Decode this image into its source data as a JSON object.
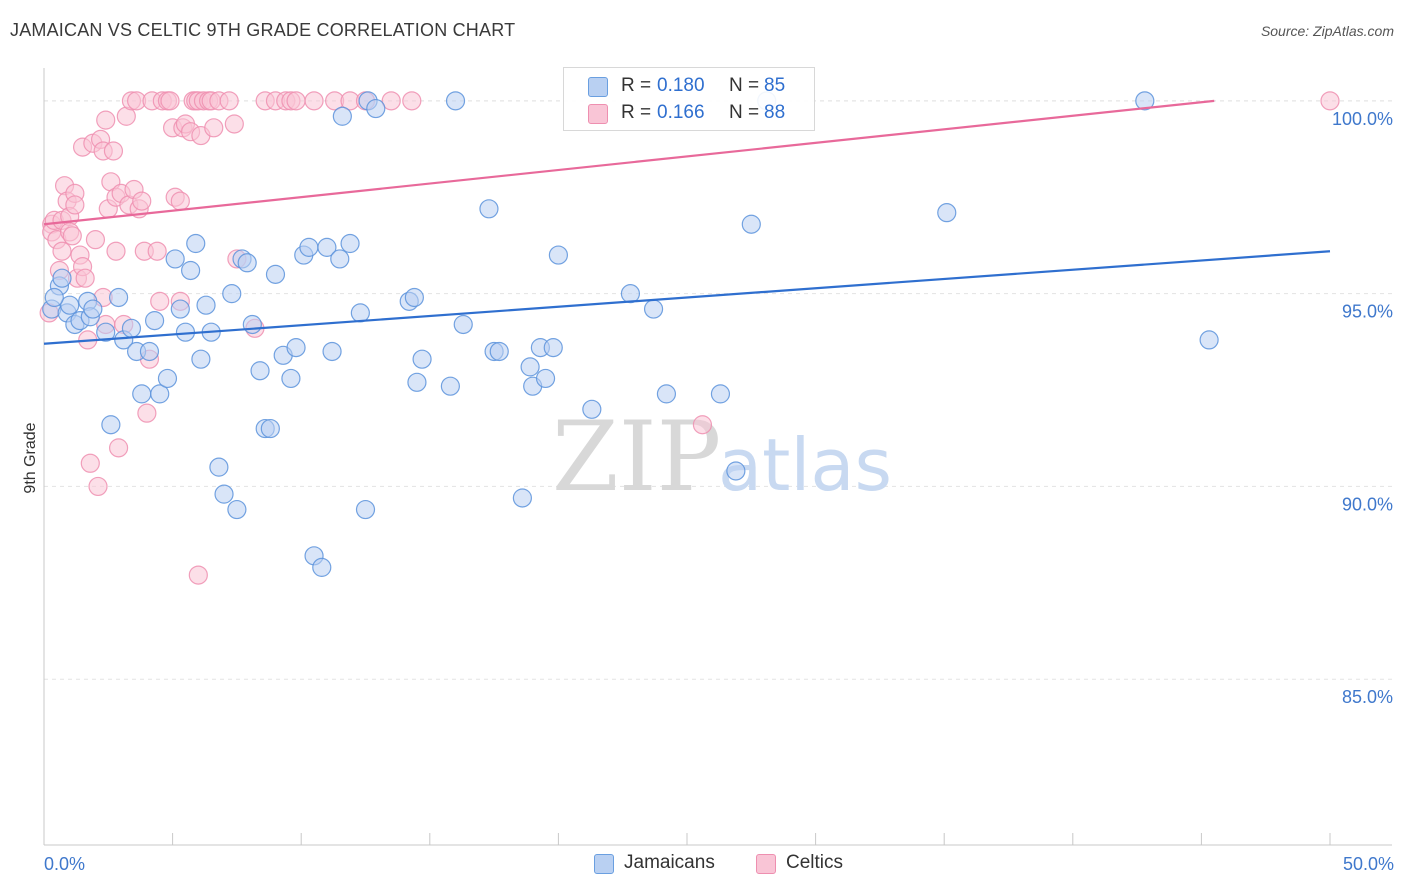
{
  "title": "JAMAICAN VS CELTIC 9TH GRADE CORRELATION CHART",
  "source": "Source: ZipAtlas.com",
  "watermark": {
    "zip": "ZIP",
    "atlas": "atlas"
  },
  "legend_top": [
    {
      "r_label": "R =",
      "r_value": "0.180",
      "n_label": "N =",
      "n_value": "85"
    },
    {
      "r_label": "R =",
      "r_value": "0.166",
      "n_label": "N =",
      "n_value": "88"
    }
  ],
  "colors": {
    "jamaicans_fill": "#b9d0f2",
    "jamaicans_stroke": "#5c93dc",
    "jamaicans_line": "#2f6fcf",
    "celtics_fill": "#f9c5d6",
    "celtics_stroke": "#ee8fb0",
    "celtics_line": "#e8699a",
    "tick_label": "#3f78cc",
    "grid": "#e3e3e3"
  },
  "chart_data": {
    "type": "scatter",
    "title": "JAMAICAN VS CELTIC 9TH GRADE CORRELATION CHART",
    "xlabel": "",
    "ylabel": "9th Grade",
    "xlim": [
      0,
      50
    ],
    "ylim": [
      80.7,
      100.8
    ],
    "x_tick_labels": [
      "0.0%",
      "50.0%"
    ],
    "y_ticks": [
      85,
      90,
      95,
      100
    ],
    "y_tick_labels": [
      "85.0%",
      "90.0%",
      "95.0%",
      "100.0%"
    ],
    "grid": true,
    "legend_position": "bottom",
    "series": [
      {
        "name": "Jamaicans",
        "r": 0.18,
        "n": 85,
        "trend": {
          "x": [
            0,
            50
          ],
          "y": [
            93.7,
            96.1
          ]
        },
        "points": [
          [
            0.3,
            94.6
          ],
          [
            0.6,
            95.2
          ],
          [
            0.7,
            95.4
          ],
          [
            0.9,
            94.5
          ],
          [
            1.0,
            94.7
          ],
          [
            1.2,
            94.2
          ],
          [
            1.4,
            94.3
          ],
          [
            1.7,
            94.8
          ],
          [
            1.8,
            94.4
          ],
          [
            1.9,
            94.6
          ],
          [
            2.4,
            94.0
          ],
          [
            2.6,
            91.6
          ],
          [
            2.9,
            94.9
          ],
          [
            3.1,
            93.8
          ],
          [
            3.4,
            94.1
          ],
          [
            3.6,
            93.5
          ],
          [
            3.8,
            92.4
          ],
          [
            4.1,
            93.5
          ],
          [
            4.3,
            94.3
          ],
          [
            4.5,
            92.4
          ],
          [
            4.8,
            92.8
          ],
          [
            5.1,
            95.9
          ],
          [
            5.3,
            94.6
          ],
          [
            5.5,
            94.0
          ],
          [
            5.7,
            95.6
          ],
          [
            5.9,
            96.3
          ],
          [
            6.1,
            93.3
          ],
          [
            6.3,
            94.7
          ],
          [
            6.5,
            94.0
          ],
          [
            6.8,
            90.5
          ],
          [
            7.0,
            89.8
          ],
          [
            7.3,
            95.0
          ],
          [
            7.5,
            89.4
          ],
          [
            7.7,
            95.9
          ],
          [
            7.9,
            95.8
          ],
          [
            8.1,
            94.2
          ],
          [
            8.4,
            93.0
          ],
          [
            8.6,
            91.5
          ],
          [
            8.8,
            91.5
          ],
          [
            9.0,
            95.5
          ],
          [
            9.3,
            93.4
          ],
          [
            9.6,
            92.8
          ],
          [
            9.8,
            93.6
          ],
          [
            10.1,
            96.0
          ],
          [
            10.3,
            96.2
          ],
          [
            10.5,
            88.2
          ],
          [
            10.8,
            87.9
          ],
          [
            11.0,
            96.2
          ],
          [
            11.2,
            93.5
          ],
          [
            11.5,
            95.9
          ],
          [
            11.6,
            99.6
          ],
          [
            11.9,
            96.3
          ],
          [
            12.3,
            94.5
          ],
          [
            12.5,
            89.4
          ],
          [
            12.6,
            100.0
          ],
          [
            12.9,
            99.8
          ],
          [
            14.2,
            94.8
          ],
          [
            14.4,
            94.9
          ],
          [
            14.5,
            92.7
          ],
          [
            14.7,
            93.3
          ],
          [
            15.8,
            92.6
          ],
          [
            16.0,
            100.0
          ],
          [
            16.3,
            94.2
          ],
          [
            17.3,
            97.2
          ],
          [
            17.5,
            93.5
          ],
          [
            17.7,
            93.5
          ],
          [
            18.6,
            89.7
          ],
          [
            18.9,
            93.1
          ],
          [
            19.0,
            92.6
          ],
          [
            19.3,
            93.6
          ],
          [
            19.5,
            92.8
          ],
          [
            19.8,
            93.6
          ],
          [
            20.0,
            96.0
          ],
          [
            21.3,
            92.0
          ],
          [
            22.8,
            95.0
          ],
          [
            23.7,
            94.6
          ],
          [
            24.2,
            92.4
          ],
          [
            26.3,
            92.4
          ],
          [
            26.9,
            90.4
          ],
          [
            27.5,
            96.8
          ],
          [
            28.1,
            100.0
          ],
          [
            35.1,
            97.1
          ],
          [
            42.8,
            100.0
          ],
          [
            45.3,
            93.8
          ],
          [
            0.4,
            94.9
          ]
        ]
      },
      {
        "name": "Celtics",
        "r": 0.166,
        "n": 88,
        "trend": {
          "x": [
            0,
            45.5
          ],
          "y": [
            96.8,
            100.0
          ]
        },
        "points": [
          [
            0.2,
            94.5
          ],
          [
            0.3,
            96.8
          ],
          [
            0.3,
            96.6
          ],
          [
            0.4,
            96.9
          ],
          [
            0.5,
            96.4
          ],
          [
            0.6,
            95.6
          ],
          [
            0.7,
            96.9
          ],
          [
            0.7,
            96.1
          ],
          [
            0.8,
            97.8
          ],
          [
            0.9,
            97.4
          ],
          [
            1.0,
            97.0
          ],
          [
            1.0,
            96.6
          ],
          [
            1.1,
            96.5
          ],
          [
            1.2,
            97.6
          ],
          [
            1.2,
            97.3
          ],
          [
            1.3,
            95.4
          ],
          [
            1.4,
            96.0
          ],
          [
            1.5,
            98.8
          ],
          [
            1.5,
            95.7
          ],
          [
            1.6,
            95.4
          ],
          [
            1.7,
            93.8
          ],
          [
            1.8,
            90.6
          ],
          [
            1.9,
            98.9
          ],
          [
            2.0,
            96.4
          ],
          [
            2.1,
            90.0
          ],
          [
            2.2,
            99.0
          ],
          [
            2.3,
            98.7
          ],
          [
            2.3,
            94.9
          ],
          [
            2.4,
            99.5
          ],
          [
            2.4,
            94.2
          ],
          [
            2.5,
            97.2
          ],
          [
            2.6,
            97.9
          ],
          [
            2.7,
            98.7
          ],
          [
            2.8,
            97.5
          ],
          [
            2.8,
            96.1
          ],
          [
            2.9,
            91.0
          ],
          [
            3.0,
            97.6
          ],
          [
            3.1,
            94.2
          ],
          [
            3.2,
            99.6
          ],
          [
            3.3,
            97.3
          ],
          [
            3.4,
            100.0
          ],
          [
            3.5,
            97.7
          ],
          [
            3.6,
            100.0
          ],
          [
            3.7,
            97.2
          ],
          [
            3.8,
            97.4
          ],
          [
            3.9,
            96.1
          ],
          [
            4.0,
            91.9
          ],
          [
            4.1,
            93.3
          ],
          [
            4.2,
            100.0
          ],
          [
            4.4,
            96.1
          ],
          [
            4.5,
            94.8
          ],
          [
            4.6,
            100.0
          ],
          [
            4.8,
            100.0
          ],
          [
            4.9,
            100.0
          ],
          [
            5.0,
            99.3
          ],
          [
            5.1,
            97.5
          ],
          [
            5.3,
            97.4
          ],
          [
            5.3,
            94.8
          ],
          [
            5.4,
            99.3
          ],
          [
            5.5,
            99.4
          ],
          [
            5.7,
            99.2
          ],
          [
            5.8,
            100.0
          ],
          [
            5.9,
            100.0
          ],
          [
            6.0,
            100.0
          ],
          [
            6.0,
            87.7
          ],
          [
            6.1,
            99.1
          ],
          [
            6.2,
            100.0
          ],
          [
            6.4,
            100.0
          ],
          [
            6.5,
            100.0
          ],
          [
            6.6,
            99.3
          ],
          [
            6.8,
            100.0
          ],
          [
            7.2,
            100.0
          ],
          [
            7.4,
            99.4
          ],
          [
            7.5,
            95.9
          ],
          [
            8.2,
            94.1
          ],
          [
            8.6,
            100.0
          ],
          [
            9.0,
            100.0
          ],
          [
            9.4,
            100.0
          ],
          [
            9.6,
            100.0
          ],
          [
            9.8,
            100.0
          ],
          [
            10.5,
            100.0
          ],
          [
            11.3,
            100.0
          ],
          [
            11.9,
            100.0
          ],
          [
            12.5,
            100.0
          ],
          [
            13.5,
            100.0
          ],
          [
            14.3,
            100.0
          ],
          [
            25.6,
            91.6
          ],
          [
            50.0,
            100.0
          ]
        ]
      }
    ]
  },
  "legend_bottom": [
    {
      "label": "Jamaicans"
    },
    {
      "label": "Celtics"
    }
  ]
}
